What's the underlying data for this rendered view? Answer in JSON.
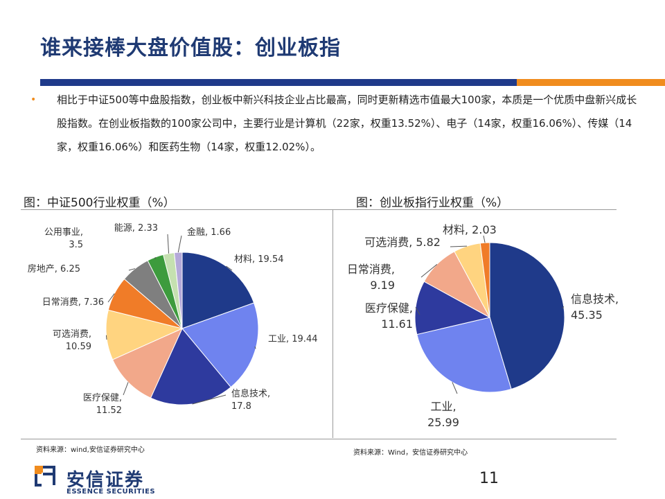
{
  "slide_title": "谁来接棒大盘价值股：创业板指",
  "paragraph": "相比于中证500等中盘股指数，创业板中新兴科技企业占比最高，同时更新精选市值最大100家，本质是一个优质中盘新兴成长股指数。在创业板指数的100家公司中，主要行业是计算机（22家，权重13.52%）、电子（14家，权重16.06%）、传媒（14家，权重16.06%）和医药生物（14家，权重12.02%）。",
  "bullet": "•",
  "left_title": "图：中证500行业权重（%）",
  "right_title": "图：创业板指行业权重（%）",
  "left_source": "资料来源：wind,安信证券研究中心",
  "right_source": "资料来源：Wind，安信证券研究中心",
  "logo_text": "安信证券",
  "logo_sub": "ESSENCE SECURITIES",
  "page_number": "11",
  "chart_data": [
    {
      "type": "pie",
      "title": "图：中证500行业权重（%）",
      "slices": [
        {
          "label": "材料",
          "value": 19.54,
          "color": "#1f3a8a"
        },
        {
          "label": "工业",
          "value": 19.44,
          "color": "#6f83ef"
        },
        {
          "label": "信息技术",
          "value": 17.8,
          "color": "#2e3a9e"
        },
        {
          "label": "医疗保健",
          "value": 11.52,
          "color": "#f2a88a"
        },
        {
          "label": "可选消费",
          "value": 10.59,
          "color": "#ffd480"
        },
        {
          "label": "日常消费",
          "value": 7.36,
          "color": "#f07c28"
        },
        {
          "label": "房地产",
          "value": 6.25,
          "color": "#7f7f7f"
        },
        {
          "label": "公用事业",
          "value": 3.5,
          "color": "#3d9b3d"
        },
        {
          "label": "能源",
          "value": 2.33,
          "color": "#c5e0b0"
        },
        {
          "label": "金融",
          "value": 1.66,
          "color": "#b4a9d9"
        }
      ]
    },
    {
      "type": "pie",
      "title": "图：创业板指行业权重（%）",
      "slices": [
        {
          "label": "信息技术",
          "value": 45.35,
          "color": "#1f3a8a"
        },
        {
          "label": "工业",
          "value": 25.99,
          "color": "#6f83ef"
        },
        {
          "label": "医疗保健",
          "value": 11.61,
          "color": "#2e3a9e"
        },
        {
          "label": "日常消费",
          "value": 9.19,
          "color": "#f2a88a"
        },
        {
          "label": "可选消费",
          "value": 5.82,
          "color": "#ffd480"
        },
        {
          "label": "材料",
          "value": 2.03,
          "color": "#f07c28"
        }
      ]
    }
  ]
}
